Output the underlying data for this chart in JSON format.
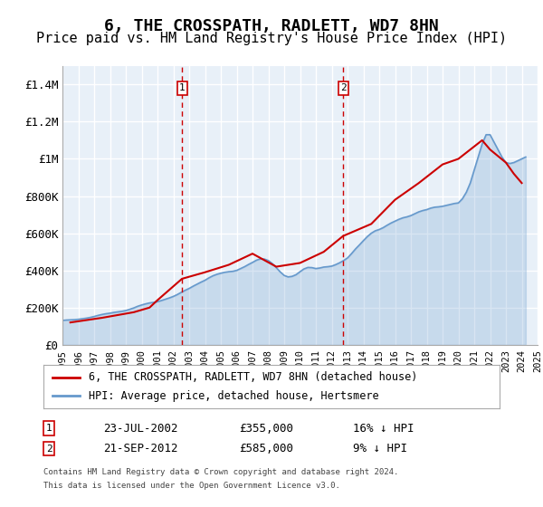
{
  "title": "6, THE CROSSPATH, RADLETT, WD7 8HN",
  "subtitle": "Price paid vs. HM Land Registry's House Price Index (HPI)",
  "title_fontsize": 13,
  "subtitle_fontsize": 11,
  "xlim": [
    1995,
    2025
  ],
  "ylim": [
    0,
    1500000
  ],
  "yticks": [
    0,
    200000,
    400000,
    600000,
    800000,
    1000000,
    1200000,
    1400000
  ],
  "ytick_labels": [
    "£0",
    "£200K",
    "£400K",
    "£600K",
    "£800K",
    "£1M",
    "£1.2M",
    "£1.4M"
  ],
  "xticks": [
    1995,
    1996,
    1997,
    1998,
    1999,
    2000,
    2001,
    2002,
    2003,
    2004,
    2005,
    2006,
    2007,
    2008,
    2009,
    2010,
    2011,
    2012,
    2013,
    2014,
    2015,
    2016,
    2017,
    2018,
    2019,
    2020,
    2021,
    2022,
    2023,
    2024,
    2025
  ],
  "background_color": "#ffffff",
  "plot_bg_color": "#e8f0f8",
  "grid_color": "#ffffff",
  "red_line_color": "#cc0000",
  "blue_line_color": "#6699cc",
  "marker1_x": 2002.55,
  "marker1_y": 355000,
  "marker1_label": "1",
  "marker1_date": "23-JUL-2002",
  "marker1_price": "£355,000",
  "marker1_hpi": "16% ↓ HPI",
  "marker2_x": 2012.72,
  "marker2_y": 585000,
  "marker2_label": "2",
  "marker2_date": "21-SEP-2012",
  "marker2_price": "£585,000",
  "marker2_hpi": "9% ↓ HPI",
  "legend_line1": "6, THE CROSSPATH, RADLETT, WD7 8HN (detached house)",
  "legend_line2": "HPI: Average price, detached house, Hertsmere",
  "footer1": "Contains HM Land Registry data © Crown copyright and database right 2024.",
  "footer2": "This data is licensed under the Open Government Licence v3.0.",
  "hpi_x": [
    1995.0,
    1995.25,
    1995.5,
    1995.75,
    1996.0,
    1996.25,
    1996.5,
    1996.75,
    1997.0,
    1997.25,
    1997.5,
    1997.75,
    1998.0,
    1998.25,
    1998.5,
    1998.75,
    1999.0,
    1999.25,
    1999.5,
    1999.75,
    2000.0,
    2000.25,
    2000.5,
    2000.75,
    2001.0,
    2001.25,
    2001.5,
    2001.75,
    2002.0,
    2002.25,
    2002.5,
    2002.75,
    2003.0,
    2003.25,
    2003.5,
    2003.75,
    2004.0,
    2004.25,
    2004.5,
    2004.75,
    2005.0,
    2005.25,
    2005.5,
    2005.75,
    2006.0,
    2006.25,
    2006.5,
    2006.75,
    2007.0,
    2007.25,
    2007.5,
    2007.75,
    2008.0,
    2008.25,
    2008.5,
    2008.75,
    2009.0,
    2009.25,
    2009.5,
    2009.75,
    2010.0,
    2010.25,
    2010.5,
    2010.75,
    2011.0,
    2011.25,
    2011.5,
    2011.75,
    2012.0,
    2012.25,
    2012.5,
    2012.75,
    2013.0,
    2013.25,
    2013.5,
    2013.75,
    2014.0,
    2014.25,
    2014.5,
    2014.75,
    2015.0,
    2015.25,
    2015.5,
    2015.75,
    2016.0,
    2016.25,
    2016.5,
    2016.75,
    2017.0,
    2017.25,
    2017.5,
    2017.75,
    2018.0,
    2018.25,
    2018.5,
    2018.75,
    2019.0,
    2019.25,
    2019.5,
    2019.75,
    2020.0,
    2020.25,
    2020.5,
    2020.75,
    2021.0,
    2021.25,
    2021.5,
    2021.75,
    2022.0,
    2022.25,
    2022.5,
    2022.75,
    2023.0,
    2023.25,
    2023.5,
    2023.75,
    2024.0,
    2024.25
  ],
  "hpi_y": [
    131000,
    133000,
    134000,
    135000,
    137000,
    140000,
    143000,
    147000,
    152000,
    158000,
    163000,
    167000,
    170000,
    174000,
    177000,
    180000,
    184000,
    191000,
    198000,
    207000,
    214000,
    220000,
    225000,
    228000,
    232000,
    238000,
    245000,
    252000,
    260000,
    270000,
    282000,
    293000,
    303000,
    315000,
    326000,
    337000,
    347000,
    360000,
    371000,
    379000,
    385000,
    390000,
    393000,
    395000,
    400000,
    410000,
    420000,
    432000,
    443000,
    455000,
    462000,
    461000,
    453000,
    437000,
    415000,
    392000,
    373000,
    365000,
    368000,
    377000,
    393000,
    408000,
    416000,
    415000,
    410000,
    413000,
    418000,
    420000,
    423000,
    431000,
    441000,
    453000,
    467000,
    490000,
    515000,
    537000,
    560000,
    582000,
    600000,
    613000,
    620000,
    630000,
    643000,
    655000,
    665000,
    675000,
    683000,
    688000,
    695000,
    705000,
    715000,
    722000,
    727000,
    735000,
    740000,
    742000,
    745000,
    750000,
    755000,
    760000,
    763000,
    785000,
    820000,
    870000,
    940000,
    1010000,
    1080000,
    1130000,
    1130000,
    1090000,
    1050000,
    1010000,
    980000,
    975000,
    980000,
    990000,
    1000000,
    1010000
  ],
  "price_x": [
    1995.5,
    1997.5,
    1999.5,
    2000.5,
    2001.0,
    2002.55,
    2004.0,
    2005.5,
    2007.0,
    2008.5,
    2010.0,
    2011.5,
    2012.72,
    2014.5,
    2016.0,
    2017.5,
    2019.0,
    2020.0,
    2021.5,
    2022.0,
    2023.0,
    2023.5,
    2024.0
  ],
  "price_y": [
    120000,
    145000,
    175000,
    200000,
    240000,
    355000,
    390000,
    430000,
    490000,
    420000,
    440000,
    500000,
    585000,
    650000,
    780000,
    870000,
    970000,
    1000000,
    1100000,
    1050000,
    980000,
    920000,
    870000
  ]
}
